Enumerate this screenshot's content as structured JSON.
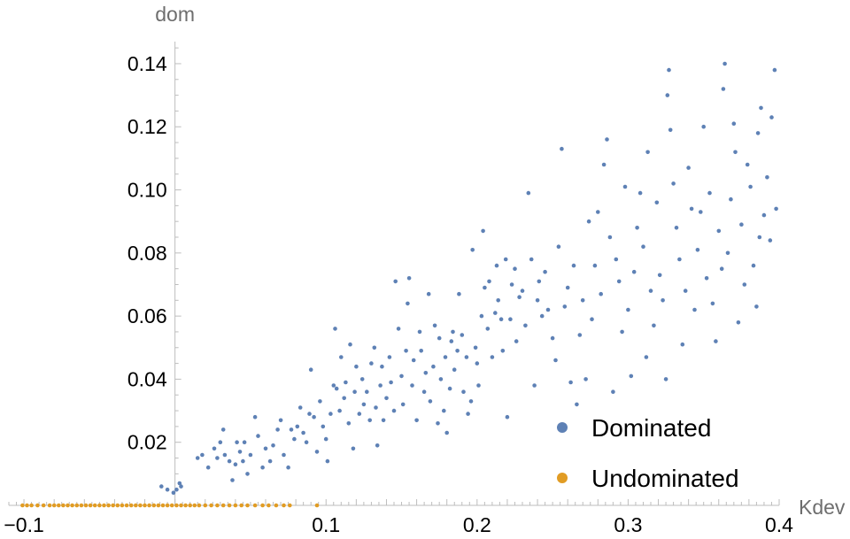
{
  "chart_data": {
    "type": "scatter",
    "xlabel": "Kdev",
    "ylabel": "dom",
    "xlim": [
      -0.11,
      0.4
    ],
    "ylim": [
      0,
      0.147
    ],
    "x_ticks": [
      {
        "value": -0.1,
        "label": "−0.1"
      },
      {
        "value": 0.1,
        "label": "0.1"
      },
      {
        "value": 0.2,
        "label": "0.2"
      },
      {
        "value": 0.3,
        "label": "0.3"
      },
      {
        "value": 0.4,
        "label": "0.4"
      }
    ],
    "y_ticks": [
      {
        "value": 0.02,
        "label": "0.02"
      },
      {
        "value": 0.04,
        "label": "0.04"
      },
      {
        "value": 0.06,
        "label": "0.06"
      },
      {
        "value": 0.08,
        "label": "0.08"
      },
      {
        "value": 0.1,
        "label": "0.10"
      },
      {
        "value": 0.12,
        "label": "0.12"
      },
      {
        "value": 0.14,
        "label": "0.14"
      }
    ],
    "grid": false,
    "legend_position": "bottom-right",
    "series": [
      {
        "name": "Dominated",
        "color": "#5e81b5",
        "points": [
          [
            -0.009,
            0.006
          ],
          [
            -0.005,
            0.005
          ],
          [
            -0.001,
            0.004
          ],
          [
            0.001,
            0.005
          ],
          [
            0.003,
            0.007
          ],
          [
            0.004,
            0.006
          ],
          [
            0.015,
            0.015
          ],
          [
            0.018,
            0.016
          ],
          [
            0.022,
            0.012
          ],
          [
            0.026,
            0.018
          ],
          [
            0.028,
            0.015
          ],
          [
            0.03,
            0.02
          ],
          [
            0.032,
            0.024
          ],
          [
            0.033,
            0.016
          ],
          [
            0.036,
            0.014
          ],
          [
            0.038,
            0.008
          ],
          [
            0.04,
            0.013
          ],
          [
            0.041,
            0.02
          ],
          [
            0.043,
            0.017
          ],
          [
            0.045,
            0.014
          ],
          [
            0.046,
            0.02
          ],
          [
            0.048,
            0.01
          ],
          [
            0.05,
            0.016
          ],
          [
            0.053,
            0.028
          ],
          [
            0.055,
            0.022
          ],
          [
            0.058,
            0.012
          ],
          [
            0.06,
            0.018
          ],
          [
            0.063,
            0.014
          ],
          [
            0.065,
            0.019
          ],
          [
            0.068,
            0.024
          ],
          [
            0.07,
            0.027
          ],
          [
            0.072,
            0.016
          ],
          [
            0.075,
            0.012
          ],
          [
            0.077,
            0.024
          ],
          [
            0.079,
            0.021
          ],
          [
            0.081,
            0.025
          ],
          [
            0.083,
            0.031
          ],
          [
            0.085,
            0.023
          ],
          [
            0.087,
            0.02
          ],
          [
            0.089,
            0.029
          ],
          [
            0.09,
            0.043
          ],
          [
            0.092,
            0.028
          ],
          [
            0.094,
            0.017
          ],
          [
            0.096,
            0.033
          ],
          [
            0.098,
            0.025
          ],
          [
            0.1,
            0.021
          ],
          [
            0.101,
            0.014
          ],
          [
            0.103,
            0.029
          ],
          [
            0.105,
            0.038
          ],
          [
            0.106,
            0.056
          ],
          [
            0.107,
            0.037
          ],
          [
            0.109,
            0.03
          ],
          [
            0.11,
            0.047
          ],
          [
            0.112,
            0.034
          ],
          [
            0.113,
            0.039
          ],
          [
            0.115,
            0.026
          ],
          [
            0.116,
            0.051
          ],
          [
            0.118,
            0.018
          ],
          [
            0.119,
            0.036
          ],
          [
            0.12,
            0.044
          ],
          [
            0.122,
            0.029
          ],
          [
            0.124,
            0.04
          ],
          [
            0.125,
            0.032
          ],
          [
            0.127,
            0.036
          ],
          [
            0.129,
            0.027
          ],
          [
            0.13,
            0.045
          ],
          [
            0.132,
            0.05
          ],
          [
            0.133,
            0.031
          ],
          [
            0.134,
            0.019
          ],
          [
            0.136,
            0.038
          ],
          [
            0.137,
            0.044
          ],
          [
            0.138,
            0.027
          ],
          [
            0.14,
            0.034
          ],
          [
            0.142,
            0.047
          ],
          [
            0.143,
            0.039
          ],
          [
            0.145,
            0.03
          ],
          [
            0.146,
            0.071
          ],
          [
            0.148,
            0.056
          ],
          [
            0.15,
            0.041
          ],
          [
            0.151,
            0.032
          ],
          [
            0.153,
            0.049
          ],
          [
            0.154,
            0.064
          ],
          [
            0.155,
            0.072
          ],
          [
            0.157,
            0.038
          ],
          [
            0.158,
            0.046
          ],
          [
            0.16,
            0.027
          ],
          [
            0.162,
            0.055
          ],
          [
            0.163,
            0.049
          ],
          [
            0.165,
            0.036
          ],
          [
            0.166,
            0.042
          ],
          [
            0.168,
            0.067
          ],
          [
            0.169,
            0.033
          ],
          [
            0.171,
            0.044
          ],
          [
            0.172,
            0.057
          ],
          [
            0.174,
            0.026
          ],
          [
            0.175,
            0.053
          ],
          [
            0.176,
            0.04
          ],
          [
            0.178,
            0.03
          ],
          [
            0.179,
            0.047
          ],
          [
            0.18,
            0.023
          ],
          [
            0.182,
            0.037
          ],
          [
            0.183,
            0.052
          ],
          [
            0.184,
            0.055
          ],
          [
            0.185,
            0.043
          ],
          [
            0.187,
            0.049
          ],
          [
            0.188,
            0.067
          ],
          [
            0.19,
            0.054
          ],
          [
            0.191,
            0.036
          ],
          [
            0.193,
            0.047
          ],
          [
            0.194,
            0.029
          ],
          [
            0.196,
            0.033
          ],
          [
            0.197,
            0.081
          ],
          [
            0.199,
            0.05
          ],
          [
            0.2,
            0.045
          ],
          [
            0.201,
            0.038
          ],
          [
            0.203,
            0.06
          ],
          [
            0.204,
            0.087
          ],
          [
            0.205,
            0.069
          ],
          [
            0.207,
            0.056
          ],
          [
            0.208,
            0.071
          ],
          [
            0.21,
            0.047
          ],
          [
            0.212,
            0.061
          ],
          [
            0.213,
            0.076
          ],
          [
            0.214,
            0.065
          ],
          [
            0.216,
            0.059
          ],
          [
            0.217,
            0.049
          ],
          [
            0.219,
            0.078
          ],
          [
            0.22,
            0.028
          ],
          [
            0.222,
            0.059
          ],
          [
            0.223,
            0.07
          ],
          [
            0.225,
            0.075
          ],
          [
            0.226,
            0.052
          ],
          [
            0.228,
            0.066
          ],
          [
            0.23,
            0.068
          ],
          [
            0.232,
            0.057
          ],
          [
            0.234,
            0.099
          ],
          [
            0.236,
            0.078
          ],
          [
            0.238,
            0.038
          ],
          [
            0.24,
            0.065
          ],
          [
            0.241,
            0.071
          ],
          [
            0.243,
            0.06
          ],
          [
            0.245,
            0.074
          ],
          [
            0.247,
            0.062
          ],
          [
            0.25,
            0.053
          ],
          [
            0.252,
            0.046
          ],
          [
            0.254,
            0.082
          ],
          [
            0.256,
            0.113
          ],
          [
            0.258,
            0.063
          ],
          [
            0.26,
            0.069
          ],
          [
            0.262,
            0.039
          ],
          [
            0.264,
            0.076
          ],
          [
            0.266,
            0.032
          ],
          [
            0.268,
            0.054
          ],
          [
            0.27,
            0.065
          ],
          [
            0.272,
            0.04
          ],
          [
            0.274,
            0.09
          ],
          [
            0.276,
            0.059
          ],
          [
            0.278,
            0.076
          ],
          [
            0.28,
            0.093
          ],
          [
            0.282,
            0.067
          ],
          [
            0.284,
            0.108
          ],
          [
            0.286,
            0.116
          ],
          [
            0.288,
            0.085
          ],
          [
            0.29,
            0.036
          ],
          [
            0.292,
            0.078
          ],
          [
            0.294,
            0.071
          ],
          [
            0.296,
            0.055
          ],
          [
            0.298,
            0.101
          ],
          [
            0.3,
            0.062
          ],
          [
            0.302,
            0.041
          ],
          [
            0.304,
            0.074
          ],
          [
            0.306,
            0.088
          ],
          [
            0.308,
            0.099
          ],
          [
            0.31,
            0.082
          ],
          [
            0.312,
            0.047
          ],
          [
            0.313,
            0.112
          ],
          [
            0.315,
            0.068
          ],
          [
            0.317,
            0.057
          ],
          [
            0.319,
            0.096
          ],
          [
            0.321,
            0.073
          ],
          [
            0.323,
            0.065
          ],
          [
            0.325,
            0.04
          ],
          [
            0.326,
            0.13
          ],
          [
            0.327,
            0.138
          ],
          [
            0.328,
            0.119
          ],
          [
            0.33,
            0.102
          ],
          [
            0.332,
            0.088
          ],
          [
            0.334,
            0.078
          ],
          [
            0.336,
            0.051
          ],
          [
            0.338,
            0.068
          ],
          [
            0.34,
            0.107
          ],
          [
            0.342,
            0.094
          ],
          [
            0.344,
            0.062
          ],
          [
            0.346,
            0.081
          ],
          [
            0.348,
            0.093
          ],
          [
            0.35,
            0.12
          ],
          [
            0.352,
            0.072
          ],
          [
            0.354,
            0.099
          ],
          [
            0.356,
            0.064
          ],
          [
            0.358,
            0.052
          ],
          [
            0.36,
            0.087
          ],
          [
            0.362,
            0.075
          ],
          [
            0.363,
            0.132
          ],
          [
            0.364,
            0.14
          ],
          [
            0.366,
            0.08
          ],
          [
            0.368,
            0.097
          ],
          [
            0.37,
            0.121
          ],
          [
            0.371,
            0.112
          ],
          [
            0.373,
            0.058
          ],
          [
            0.375,
            0.089
          ],
          [
            0.377,
            0.07
          ],
          [
            0.379,
            0.108
          ],
          [
            0.381,
            0.101
          ],
          [
            0.383,
            0.076
          ],
          [
            0.385,
            0.063
          ],
          [
            0.386,
            0.118
          ],
          [
            0.387,
            0.085
          ],
          [
            0.388,
            0.126
          ],
          [
            0.39,
            0.092
          ],
          [
            0.392,
            0.104
          ],
          [
            0.394,
            0.084
          ],
          [
            0.395,
            0.123
          ],
          [
            0.397,
            0.138
          ],
          [
            0.398,
            0.094
          ]
        ]
      },
      {
        "name": "Undominated",
        "color": "#e19c24",
        "points": [
          [
            -0.101,
            0
          ],
          [
            -0.098,
            0
          ],
          [
            -0.095,
            0
          ],
          [
            -0.091,
            0
          ],
          [
            -0.087,
            0
          ],
          [
            -0.083,
            0
          ],
          [
            -0.08,
            0
          ],
          [
            -0.077,
            0
          ],
          [
            -0.074,
            0
          ],
          [
            -0.071,
            0
          ],
          [
            -0.068,
            0
          ],
          [
            -0.065,
            0
          ],
          [
            -0.062,
            0
          ],
          [
            -0.059,
            0
          ],
          [
            -0.056,
            0
          ],
          [
            -0.053,
            0
          ],
          [
            -0.05,
            0
          ],
          [
            -0.047,
            0
          ],
          [
            -0.044,
            0
          ],
          [
            -0.041,
            0
          ],
          [
            -0.038,
            0
          ],
          [
            -0.035,
            0
          ],
          [
            -0.032,
            0
          ],
          [
            -0.029,
            0
          ],
          [
            -0.026,
            0
          ],
          [
            -0.023,
            0
          ],
          [
            -0.02,
            0
          ],
          [
            -0.017,
            0
          ],
          [
            -0.014,
            0
          ],
          [
            -0.011,
            0
          ],
          [
            -0.008,
            0
          ],
          [
            -0.005,
            0
          ],
          [
            -0.002,
            0
          ],
          [
            0.001,
            0
          ],
          [
            0.004,
            0
          ],
          [
            0.007,
            0
          ],
          [
            0.01,
            0
          ],
          [
            0.013,
            0
          ],
          [
            0.016,
            0
          ],
          [
            0.02,
            0
          ],
          [
            0.024,
            0
          ],
          [
            0.028,
            0
          ],
          [
            0.032,
            0
          ],
          [
            0.036,
            0
          ],
          [
            0.04,
            0
          ],
          [
            0.044,
            0
          ],
          [
            0.048,
            0
          ],
          [
            0.053,
            0
          ],
          [
            0.058,
            0
          ],
          [
            0.062,
            0
          ],
          [
            0.067,
            0
          ],
          [
            0.072,
            0
          ],
          [
            0.076,
            0
          ],
          [
            0.094,
            0
          ]
        ]
      }
    ]
  }
}
